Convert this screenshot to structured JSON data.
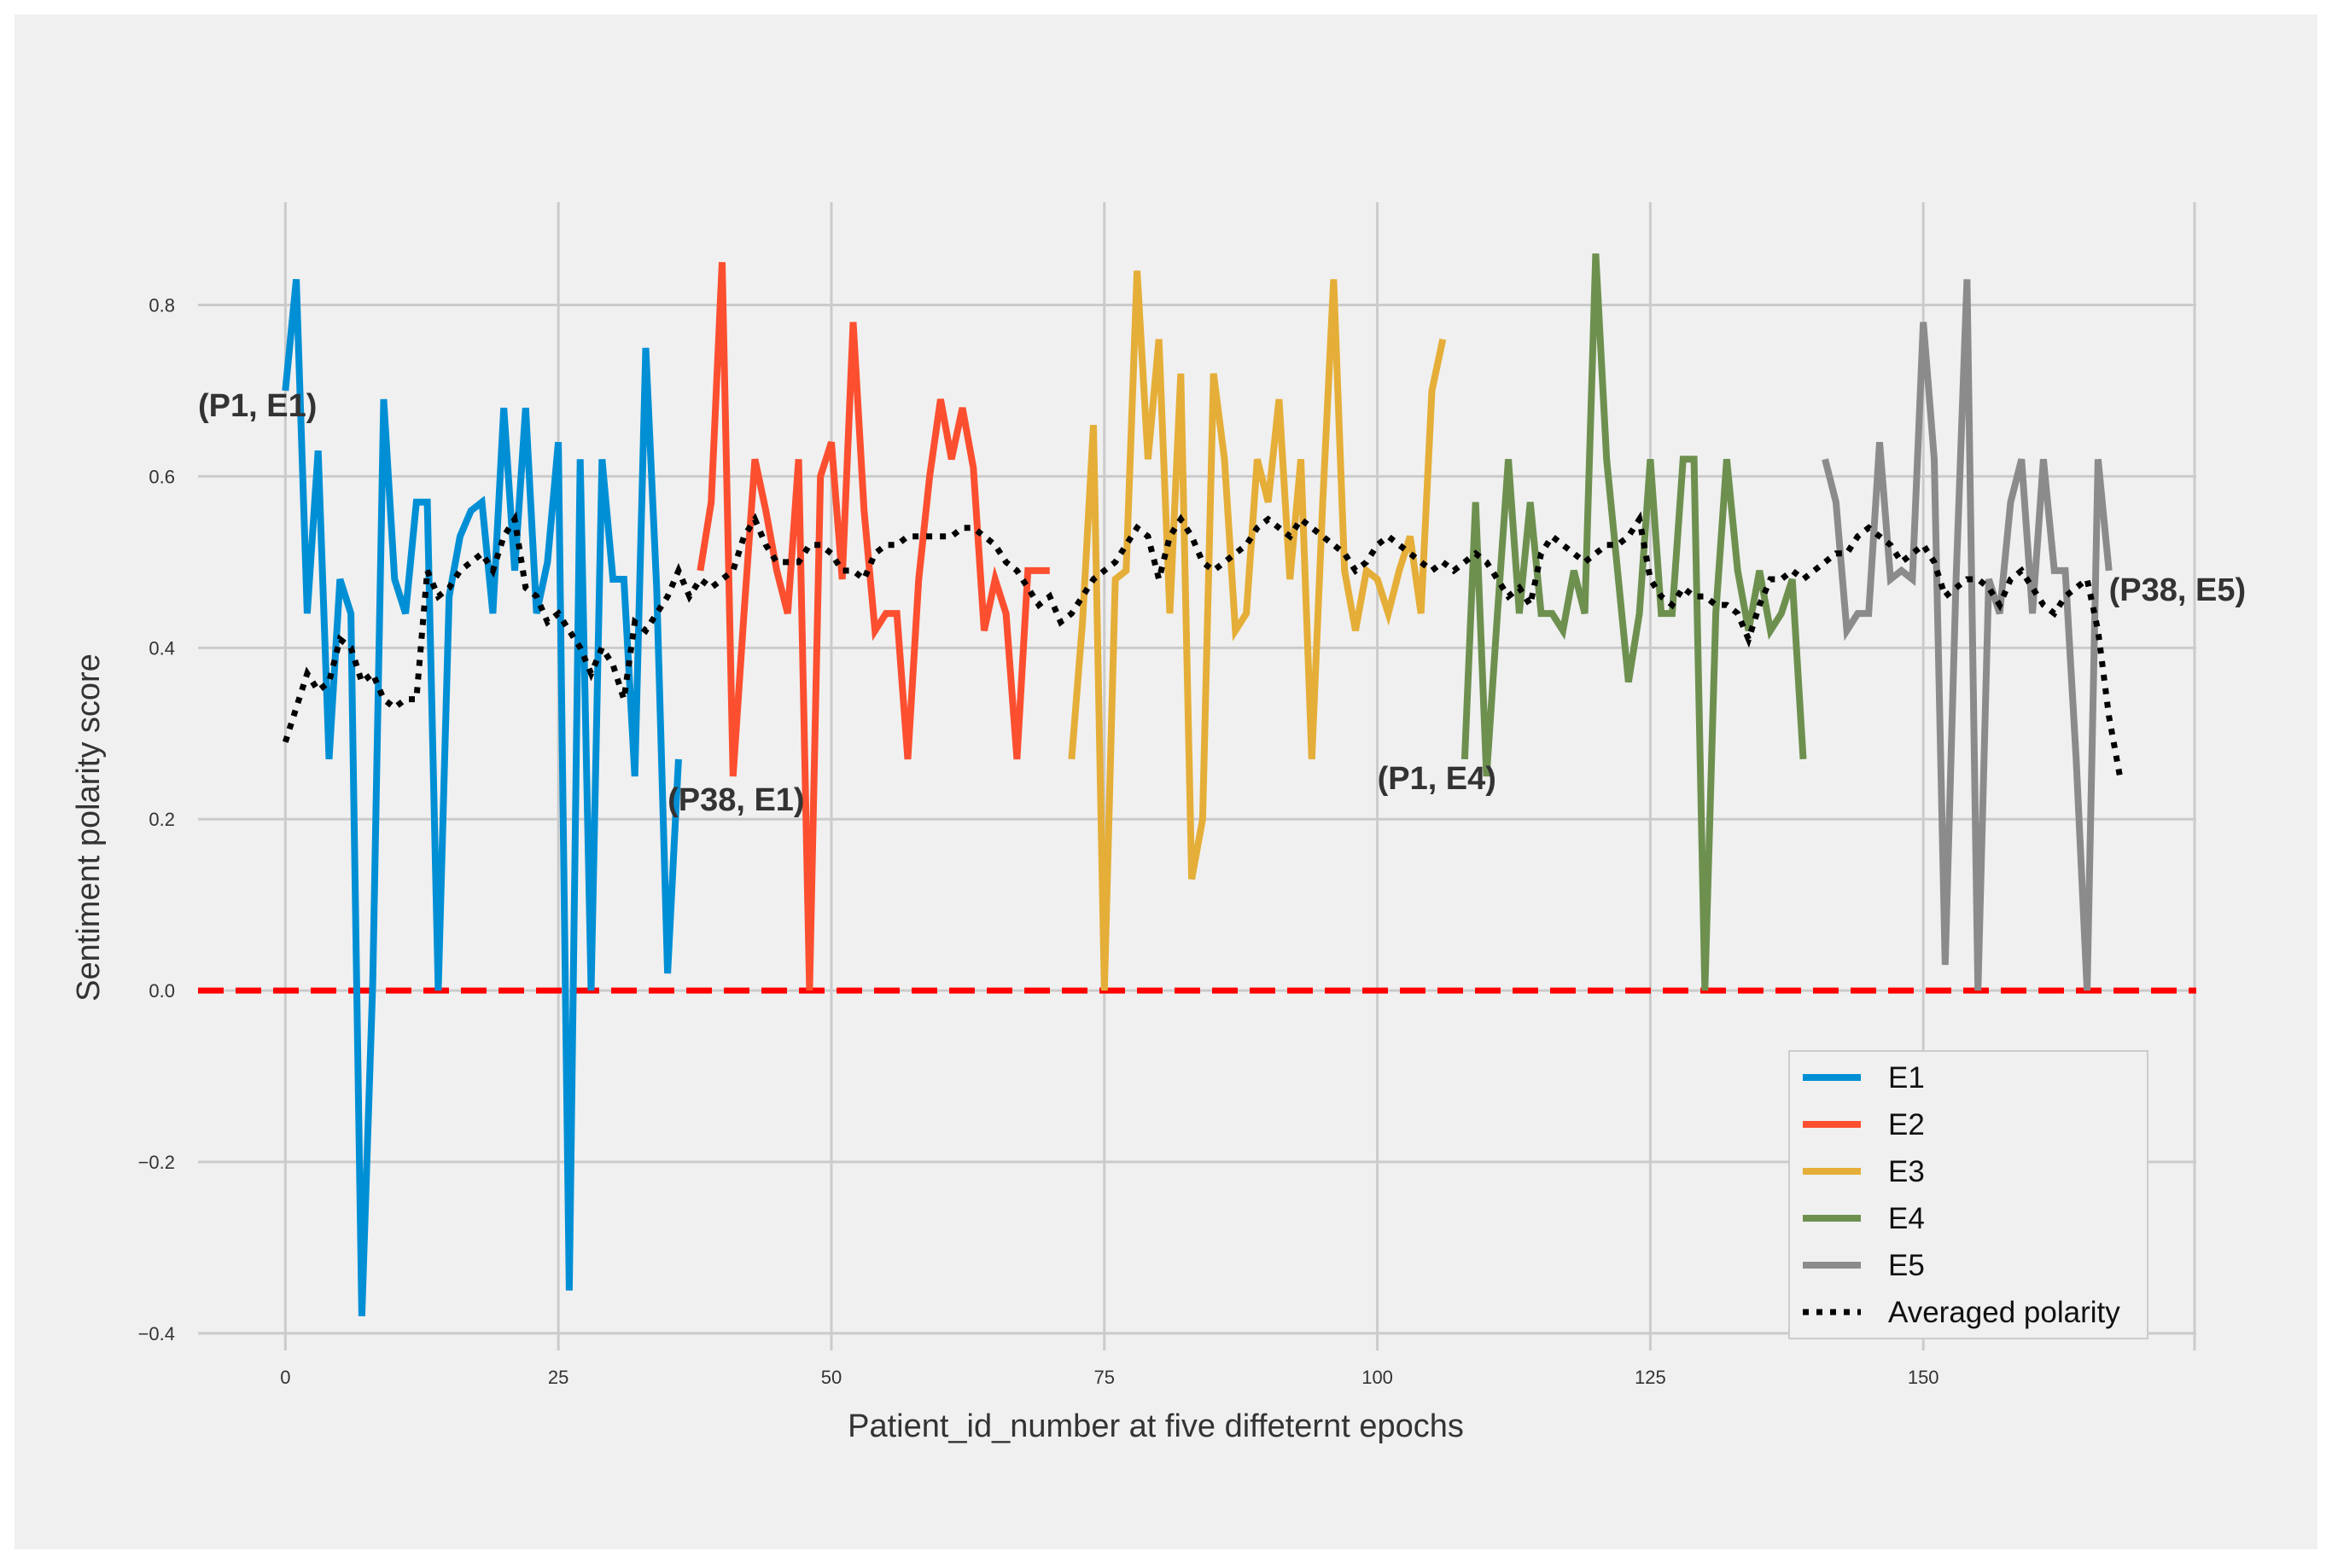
{
  "chart_data": {
    "type": "line",
    "title": "",
    "xlabel": "Patient_id_number at five diffeternt epochs",
    "ylabel": "Sentiment polarity score",
    "xlim": [
      -8,
      175
    ],
    "ylim": [
      -0.42,
      0.92
    ],
    "grid": true,
    "legend_position": "lower-right",
    "xticks": [
      0,
      25,
      50,
      75,
      100,
      125,
      150
    ],
    "yticks": [
      -0.4,
      -0.2,
      0.0,
      0.2,
      0.4,
      0.6,
      0.8
    ],
    "ytick_labels": [
      "−0.4",
      "−0.2",
      "0.0",
      "0.2",
      "0.4",
      "0.6",
      "0.8"
    ],
    "reference_line": {
      "y": 0.0,
      "color": "#ff0000",
      "style": "dashed"
    },
    "series": [
      {
        "name": "E1",
        "color": "#008fd5",
        "x_start": 0,
        "values": [
          0.7,
          0.83,
          0.44,
          0.63,
          0.27,
          0.48,
          0.44,
          -0.38,
          0.01,
          0.69,
          0.48,
          0.44,
          0.57,
          0.57,
          0.0,
          0.46,
          0.53,
          0.56,
          0.57,
          0.44,
          0.68,
          0.49,
          0.68,
          0.44,
          0.5,
          0.64,
          -0.35,
          0.62,
          0.0,
          0.62,
          0.48,
          0.48,
          0.25,
          0.75,
          0.47,
          0.02,
          0.27
        ]
      },
      {
        "name": "E2",
        "color": "#fc4f30",
        "x_start": 38,
        "values": [
          0.49,
          0.57,
          0.85,
          0.25,
          0.44,
          0.62,
          0.56,
          0.49,
          0.44,
          0.62,
          0.0,
          0.6,
          0.64,
          0.48,
          0.78,
          0.56,
          0.42,
          0.44,
          0.44,
          0.27,
          0.48,
          0.6,
          0.69,
          0.62,
          0.68,
          0.61,
          0.42,
          0.48,
          0.44,
          0.27,
          0.49,
          0.49,
          0.49
        ]
      },
      {
        "name": "E3",
        "color": "#e5ae38",
        "x_start": 72,
        "values": [
          0.27,
          0.43,
          0.66,
          0.0,
          0.48,
          0.49,
          0.84,
          0.62,
          0.76,
          0.44,
          0.72,
          0.13,
          0.2,
          0.72,
          0.62,
          0.42,
          0.44,
          0.62,
          0.57,
          0.69,
          0.48,
          0.62,
          0.27,
          0.57,
          0.83,
          0.49,
          0.42,
          0.49,
          0.48,
          0.44,
          0.49,
          0.53,
          0.44,
          0.7,
          0.76
        ]
      },
      {
        "name": "E4",
        "color": "#6d904f",
        "x_start": 108,
        "values": [
          0.27,
          0.57,
          0.25,
          0.44,
          0.62,
          0.44,
          0.57,
          0.44,
          0.44,
          0.42,
          0.49,
          0.44,
          0.86,
          0.62,
          0.49,
          0.36,
          0.44,
          0.62,
          0.44,
          0.44,
          0.62,
          0.62,
          0.0,
          0.44,
          0.62,
          0.49,
          0.42,
          0.49,
          0.42,
          0.44,
          0.48,
          0.27
        ]
      },
      {
        "name": "E5",
        "color": "#8b8b8b",
        "x_start": 141,
        "values": [
          0.62,
          0.57,
          0.42,
          0.44,
          0.44,
          0.64,
          0.48,
          0.49,
          0.48,
          0.78,
          0.62,
          0.03,
          0.48,
          0.83,
          0.0,
          0.48,
          0.44,
          0.57,
          0.62,
          0.44,
          0.62,
          0.49,
          0.49,
          0.27,
          0.0,
          0.62,
          0.49
        ]
      }
    ],
    "average": {
      "name": "Averaged polarity",
      "color": "#000000",
      "style": "dotted",
      "x_start": 0,
      "values": [
        0.29,
        0.33,
        0.37,
        0.35,
        0.36,
        0.41,
        0.4,
        0.36,
        0.37,
        0.34,
        0.33,
        0.34,
        0.34,
        0.49,
        0.46,
        0.47,
        0.49,
        0.5,
        0.51,
        0.49,
        0.53,
        0.55,
        0.47,
        0.46,
        0.43,
        0.44,
        0.42,
        0.4,
        0.37,
        0.4,
        0.38,
        0.34,
        0.43,
        0.42,
        0.44,
        0.46,
        0.49,
        0.46,
        0.48,
        0.47,
        0.48,
        0.49,
        0.53,
        0.55,
        0.52,
        0.5,
        0.5,
        0.5,
        0.52,
        0.52,
        0.51,
        0.49,
        0.49,
        0.48,
        0.51,
        0.52,
        0.52,
        0.53,
        0.53,
        0.53,
        0.53,
        0.53,
        0.54,
        0.54,
        0.53,
        0.52,
        0.5,
        0.49,
        0.47,
        0.45,
        0.46,
        0.43,
        0.44,
        0.46,
        0.48,
        0.49,
        0.5,
        0.52,
        0.54,
        0.53,
        0.48,
        0.53,
        0.55,
        0.53,
        0.5,
        0.49,
        0.5,
        0.51,
        0.52,
        0.54,
        0.55,
        0.54,
        0.53,
        0.55,
        0.54,
        0.53,
        0.52,
        0.51,
        0.49,
        0.5,
        0.52,
        0.53,
        0.52,
        0.51,
        0.5,
        0.49,
        0.5,
        0.49,
        0.5,
        0.51,
        0.5,
        0.48,
        0.46,
        0.47,
        0.45,
        0.51,
        0.53,
        0.52,
        0.51,
        0.5,
        0.51,
        0.52,
        0.52,
        0.53,
        0.55,
        0.48,
        0.46,
        0.45,
        0.47,
        0.46,
        0.46,
        0.45,
        0.45,
        0.44,
        0.41,
        0.45,
        0.48,
        0.48,
        0.49,
        0.48,
        0.49,
        0.5,
        0.51,
        0.51,
        0.53,
        0.54,
        0.53,
        0.52,
        0.5,
        0.51,
        0.52,
        0.5,
        0.46,
        0.47,
        0.48,
        0.48,
        0.47,
        0.45,
        0.48,
        0.49,
        0.47,
        0.45,
        0.44,
        0.46,
        0.47,
        0.48,
        0.42,
        0.32,
        0.25
      ]
    }
  },
  "annotations": [
    {
      "text": "(P1, E1)",
      "x": -8,
      "y": 0.67
    },
    {
      "text": "(P38, E1)",
      "x": 35,
      "y": 0.21
    },
    {
      "text": "(P1, E4)",
      "x": 100,
      "y": 0.235
    },
    {
      "text": "(P38, E5)",
      "x": 167,
      "y": 0.455
    }
  ]
}
